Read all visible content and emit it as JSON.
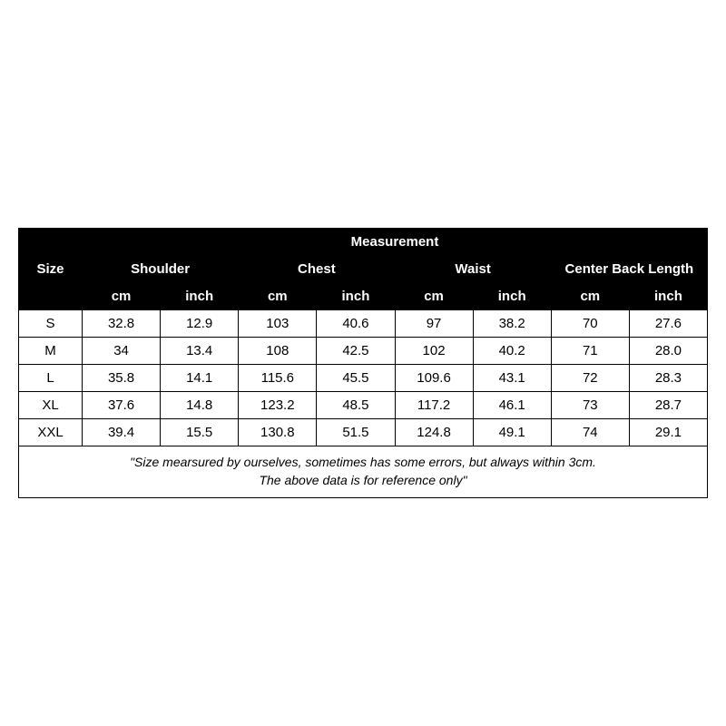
{
  "table": {
    "header": {
      "size_label": "Size",
      "measurement_label": "Measurement",
      "groups": [
        "Shoulder",
        "Chest",
        "Waist",
        "Center Back Length"
      ],
      "units": [
        "cm",
        "inch"
      ]
    },
    "rows": [
      {
        "size": "S",
        "values": [
          "32.8",
          "12.9",
          "103",
          "40.6",
          "97",
          "38.2",
          "70",
          "27.6"
        ]
      },
      {
        "size": "M",
        "values": [
          "34",
          "13.4",
          "108",
          "42.5",
          "102",
          "40.2",
          "71",
          "28.0"
        ]
      },
      {
        "size": "L",
        "values": [
          "35.8",
          "14.1",
          "115.6",
          "45.5",
          "109.6",
          "43.1",
          "72",
          "28.3"
        ]
      },
      {
        "size": "XL",
        "values": [
          "37.6",
          "14.8",
          "123.2",
          "48.5",
          "117.2",
          "46.1",
          "73",
          "28.7"
        ]
      },
      {
        "size": "XXL",
        "values": [
          "39.4",
          "15.5",
          "130.8",
          "51.5",
          "124.8",
          "49.1",
          "74",
          "29.1"
        ]
      }
    ],
    "footnote_line1": "\"Size mearsured by ourselves, sometimes has some errors, but always within 3cm.",
    "footnote_line2": "The above data is for reference only\"",
    "colors": {
      "header_bg": "#000000",
      "header_fg": "#ffffff",
      "cell_bg": "#ffffff",
      "cell_fg": "#000000",
      "border": "#000000"
    },
    "font_sizes": {
      "header": 15,
      "cell": 15,
      "footnote": 14
    },
    "column_widths": {
      "size": 70,
      "data": 86
    }
  }
}
